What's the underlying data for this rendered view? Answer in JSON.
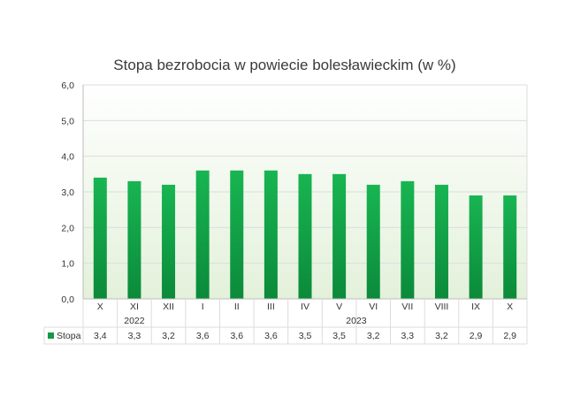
{
  "chart_data": {
    "type": "bar",
    "title": "Stopa bezrobocia w powiecie bolesławieckim (w %)",
    "categories": [
      "X",
      "XI",
      "XII",
      "I",
      "II",
      "III",
      "IV",
      "V",
      "VI",
      "VII",
      "VIII",
      "IX",
      "X"
    ],
    "year_groups": [
      {
        "label": "2022",
        "start": 0,
        "end": 2
      },
      {
        "label": "2023",
        "start": 3,
        "end": 12
      }
    ],
    "series": [
      {
        "name": "Stopa",
        "values": [
          3.4,
          3.3,
          3.2,
          3.6,
          3.6,
          3.6,
          3.5,
          3.5,
          3.2,
          3.3,
          3.2,
          2.9,
          2.9
        ]
      }
    ],
    "value_labels": [
      "3,4",
      "3,3",
      "3,2",
      "3,6",
      "3,6",
      "3,6",
      "3,5",
      "3,5",
      "3,2",
      "3,3",
      "3,2",
      "2,9",
      "2,9"
    ],
    "yticks": [
      "0,0",
      "1,0",
      "2,0",
      "3,0",
      "4,0",
      "5,0",
      "6,0"
    ],
    "ylim": [
      0,
      6
    ],
    "xlabel": "",
    "ylabel": "",
    "grid": true,
    "legend": "data-table-left",
    "colors": {
      "bar_top": "#18b552",
      "bar_bottom": "#0b8a3a",
      "plot_bg_top": "#ffffff",
      "plot_bg_bottom": "#e3f1da",
      "grid": "#dcdcdc",
      "axis": "#bdbdbd",
      "legend_key": "#119a44"
    }
  }
}
